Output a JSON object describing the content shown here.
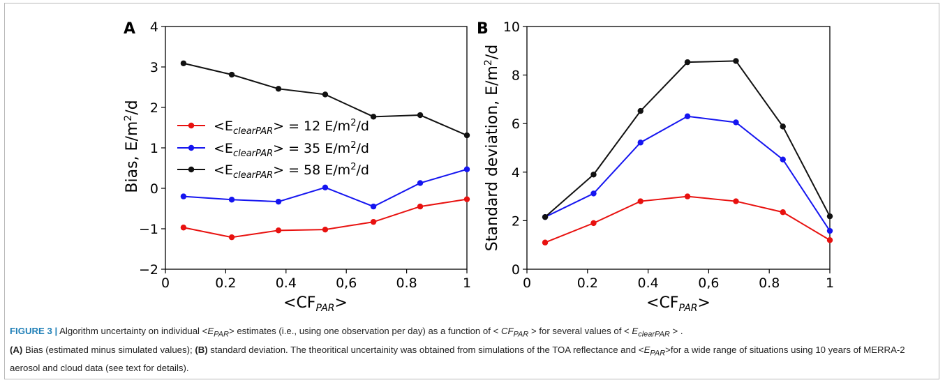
{
  "chart_data": [
    {
      "type": "line",
      "panel_label": "A",
      "xlabel_main": "<CF",
      "xlabel_sub": "PAR",
      "xlabel_end": ">",
      "ylabel": "Bias, E/m",
      "ylabel_sup": "2",
      "ylabel_end": "/d",
      "xlim": [
        0,
        1
      ],
      "ylim": [
        -2,
        4
      ],
      "xticks": [
        {
          "v": 0,
          "label": "0"
        },
        {
          "v": 0.2,
          "label": "0.2"
        },
        {
          "v": 0.4,
          "label": "0.4"
        },
        {
          "v": 0.6,
          "label": "0,6"
        },
        {
          "v": 0.8,
          "label": "0.8"
        },
        {
          "v": 1,
          "label": "1"
        }
      ],
      "yticks": [
        {
          "v": -2,
          "label": "−2"
        },
        {
          "v": -1,
          "label": "−1"
        },
        {
          "v": 0,
          "label": "0"
        },
        {
          "v": 1,
          "label": "1"
        },
        {
          "v": 2,
          "label": "2"
        },
        {
          "v": 3,
          "label": "3"
        },
        {
          "v": 4,
          "label": "4"
        }
      ],
      "x": [
        0.06,
        0.22,
        0.375,
        0.53,
        0.69,
        0.845,
        1.0
      ],
      "legend_position": "center-left",
      "series": [
        {
          "name_pre": "<E",
          "name_sub": "clearPAR",
          "name_post": "> = 12 E/m",
          "name_sup": "2",
          "name_end": "/d",
          "color": "#e8110f",
          "values": [
            -0.97,
            -1.21,
            -1.04,
            -1.02,
            -0.83,
            -0.45,
            -0.27
          ]
        },
        {
          "name_pre": "<E",
          "name_sub": "clearPAR",
          "name_post": "> = 35 E/m",
          "name_sup": "2",
          "name_end": "/d",
          "color": "#1515f0",
          "values": [
            -0.2,
            -0.28,
            -0.33,
            0.02,
            -0.45,
            0.13,
            0.47
          ]
        },
        {
          "name_pre": "<E",
          "name_sub": "clearPAR",
          "name_post": "> = 58 E/m",
          "name_sup": "2",
          "name_end": "/d",
          "color": "#111111",
          "values": [
            3.09,
            2.81,
            2.46,
            2.32,
            1.77,
            1.81,
            1.31
          ]
        }
      ]
    },
    {
      "type": "line",
      "panel_label": "B",
      "xlabel_main": "<CF",
      "xlabel_sub": "PAR",
      "xlabel_end": ">",
      "ylabel": "Standard deviation, E/m",
      "ylabel_sup": "2",
      "ylabel_end": "/d",
      "xlim": [
        0,
        1
      ],
      "ylim": [
        0,
        10
      ],
      "xticks": [
        {
          "v": 0,
          "label": "0"
        },
        {
          "v": 0.2,
          "label": "0.2"
        },
        {
          "v": 0.4,
          "label": "0.4"
        },
        {
          "v": 0.6,
          "label": "0,6"
        },
        {
          "v": 0.8,
          "label": "0.8"
        },
        {
          "v": 1,
          "label": "1"
        }
      ],
      "yticks": [
        {
          "v": 0,
          "label": "0"
        },
        {
          "v": 2,
          "label": "2"
        },
        {
          "v": 4,
          "label": "4"
        },
        {
          "v": 6,
          "label": "6"
        },
        {
          "v": 8,
          "label": "8"
        },
        {
          "v": 10,
          "label": "10"
        }
      ],
      "x": [
        0.06,
        0.22,
        0.375,
        0.53,
        0.69,
        0.845,
        1.0
      ],
      "series": [
        {
          "color": "#e8110f",
          "values": [
            1.1,
            1.9,
            2.8,
            3.0,
            2.8,
            2.35,
            1.2
          ]
        },
        {
          "color": "#1515f0",
          "values": [
            2.15,
            3.12,
            5.22,
            6.3,
            6.05,
            4.52,
            1.58
          ]
        },
        {
          "color": "#111111",
          "values": [
            2.15,
            3.9,
            6.52,
            8.53,
            8.58,
            5.88,
            2.18
          ]
        }
      ]
    }
  ],
  "caption": {
    "figure_label": "FIGURE 3 |",
    "t1": " Algorithm uncertainty on individual <",
    "e1": "E",
    "s1": "PAR",
    "t2": "> estimates (i.e., using one observation per day) as a function of  < ",
    "e2": "CF",
    "s2": "PAR",
    "t3": " >  for several values of < ",
    "e3": "E",
    "s3": "clearPAR",
    "t4": " > .",
    "a_label": "(A)",
    "a_text": " Bias (estimated minus simulated values); ",
    "b_label": "(B)",
    "b_text": " standard deviation. The theoritical uncertainity was obtained from simulations of the TOA reflectance and <",
    "e4": "E",
    "s4": "PAR",
    "t5": ">for a wide range of situations using 10 years of MERRA-2 aerosol and cloud data (see text for details)."
  }
}
